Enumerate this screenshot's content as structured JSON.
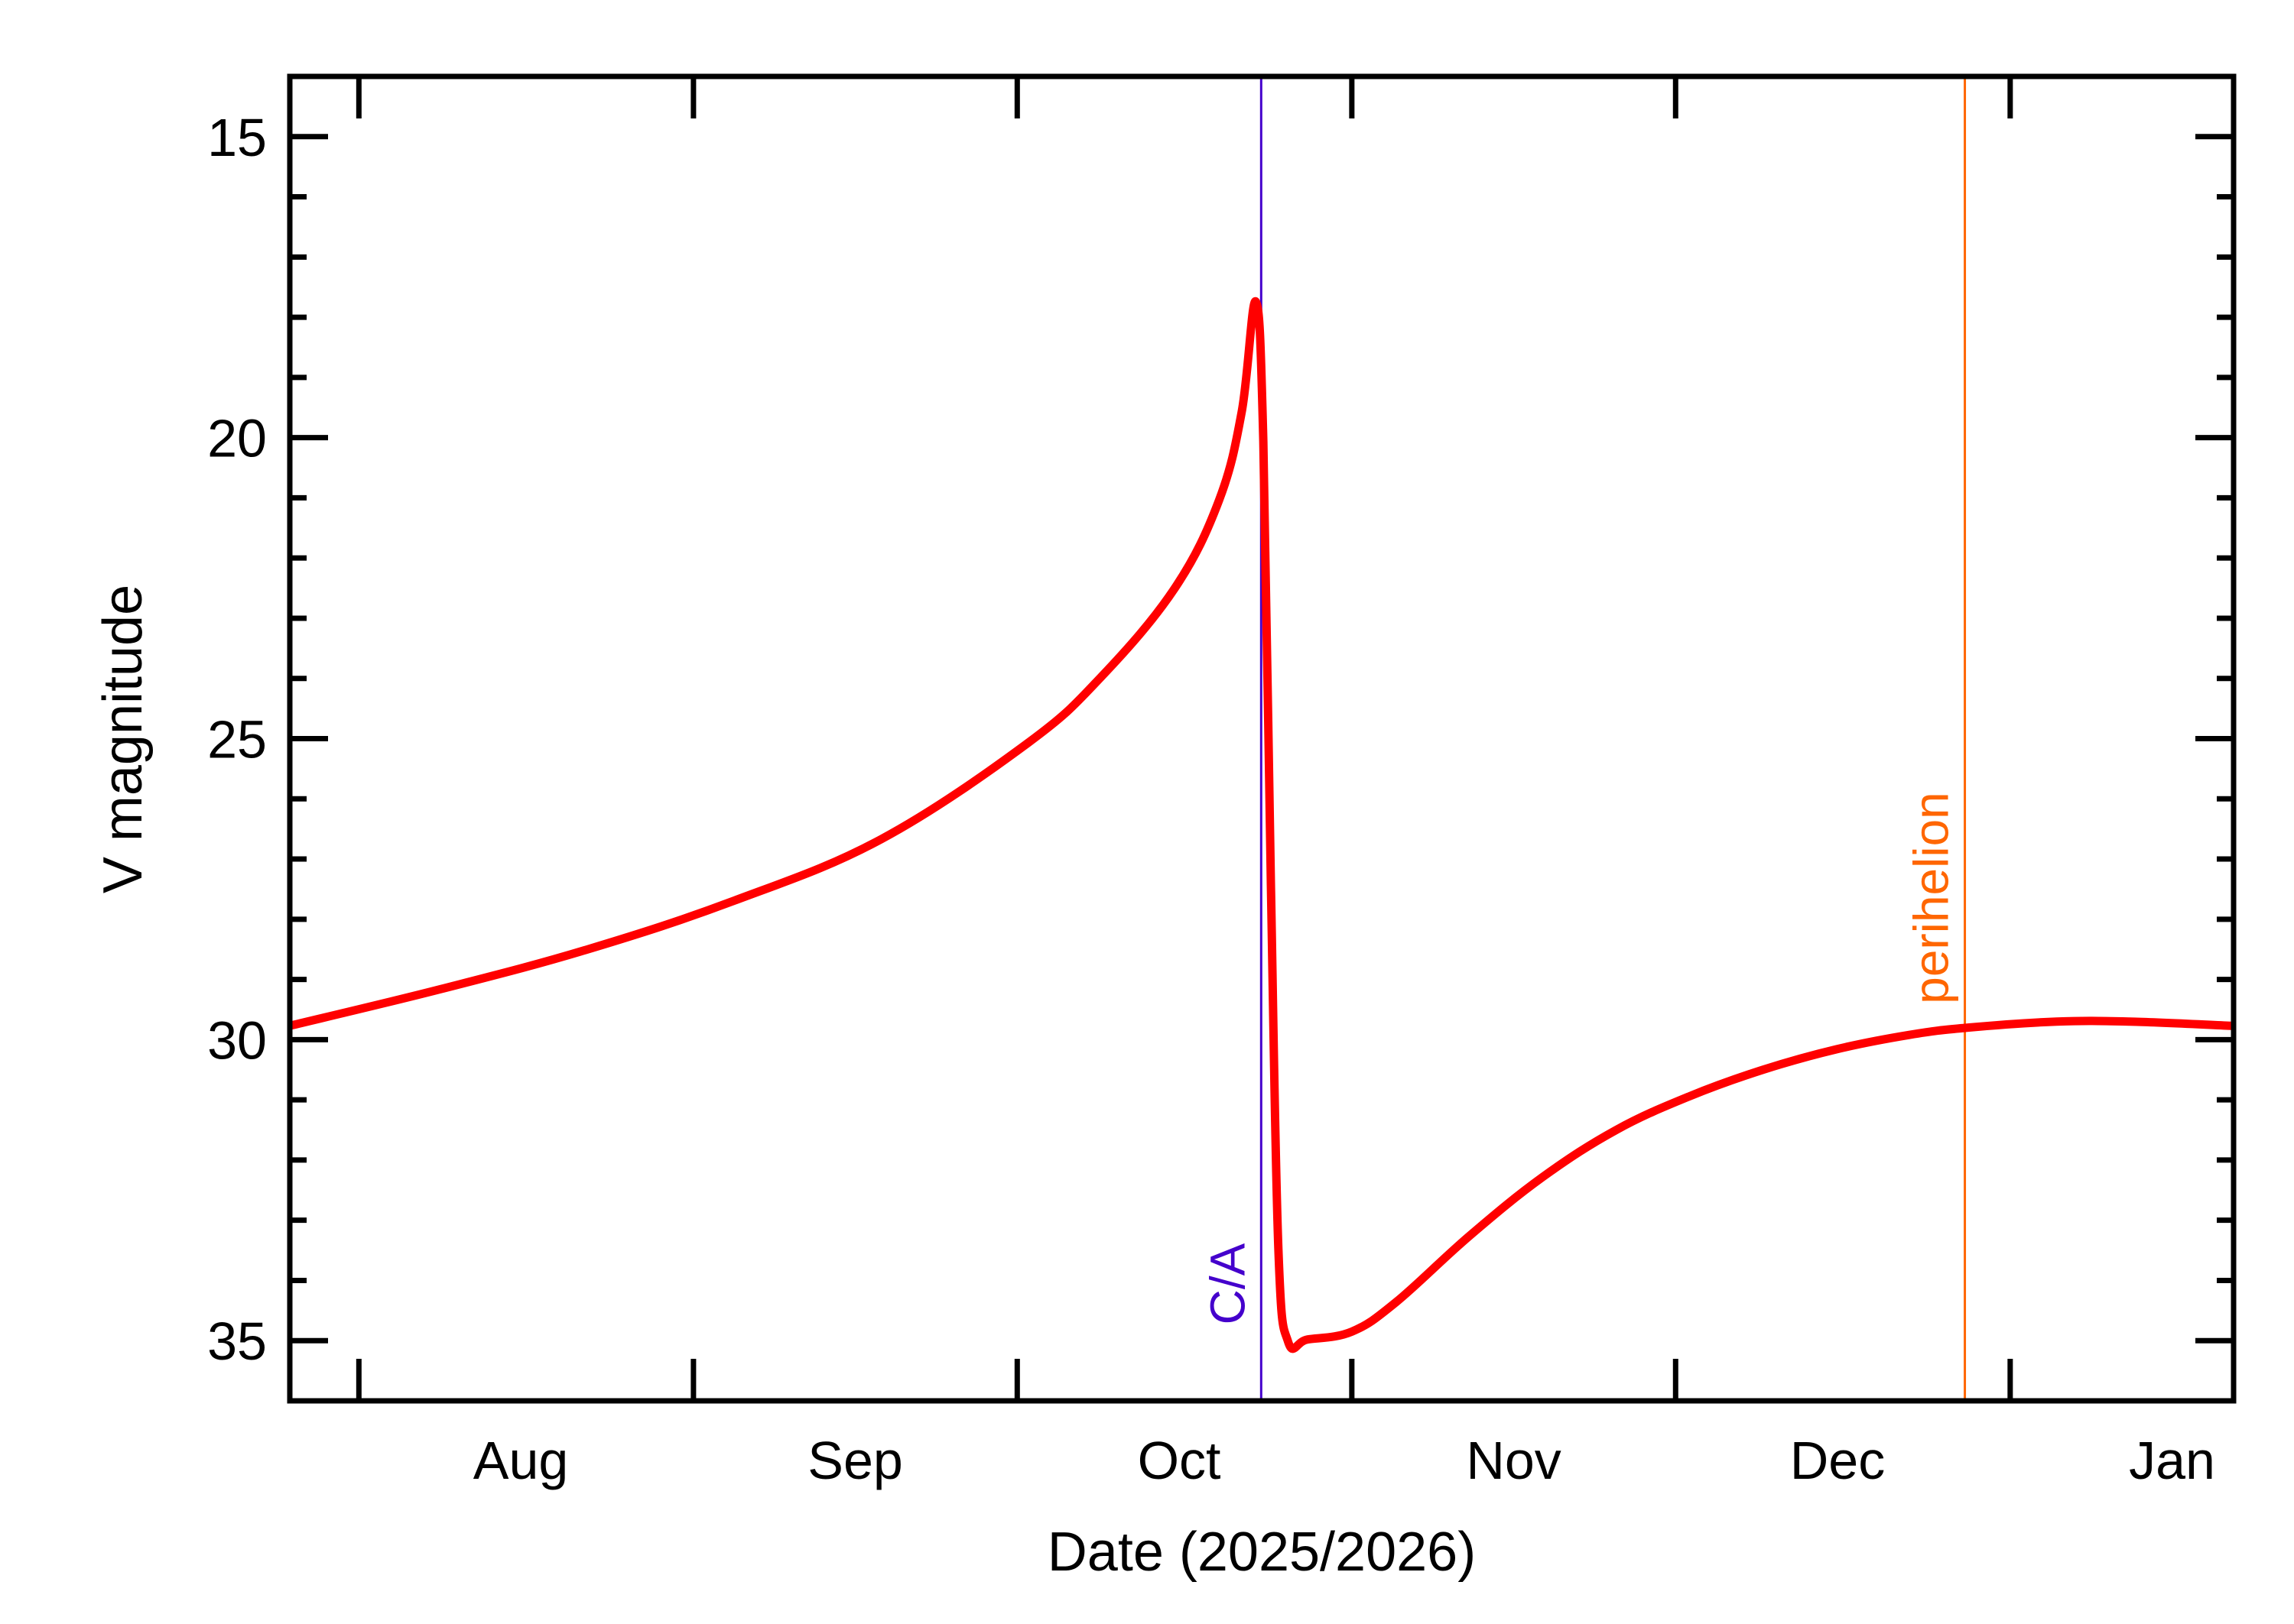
{
  "chart_data": {
    "type": "line",
    "title": "",
    "xlabel": "Date (2025/2026)",
    "ylabel": "V magnitude",
    "x_units": "days since 2025-08-01",
    "xlim": [
      -6.4,
      173.7
    ],
    "ylim": [
      36,
      14
    ],
    "y_inverted": true,
    "yticks": [
      15,
      20,
      25,
      30,
      35
    ],
    "yticks_minor_step": 1,
    "xticks": [
      {
        "day": 0,
        "label": "Aug"
      },
      {
        "day": 31,
        "label": "Sep"
      },
      {
        "day": 61,
        "label": "Oct"
      },
      {
        "day": 92,
        "label": "Nov"
      },
      {
        "day": 122,
        "label": "Dec"
      },
      {
        "day": 153,
        "label": "Jan"
      }
    ],
    "grid": false,
    "series": [
      {
        "name": "V magnitude",
        "color": "#ff0000",
        "x": [
          -6.4,
          7.6,
          21.2,
          34.8,
          48.4,
          62.0,
          68.8,
          75.6,
          79.7,
          81.8,
          83.1,
          83.8,
          84.5,
          85.2,
          86.1,
          87.9,
          92.0,
          96.1,
          102.9,
          109.7,
          116.5,
          123.3,
          130.1,
          136.9,
          143.7,
          149.1,
          157.3,
          164.1,
          173.5
        ],
        "y": [
          29.77,
          29.16,
          28.5,
          27.69,
          26.67,
          25.07,
          23.97,
          22.5,
          21.04,
          19.57,
          17.74,
          20.06,
          27.4,
          33.5,
          35.02,
          34.98,
          34.85,
          34.36,
          33.26,
          32.28,
          31.5,
          30.94,
          30.5,
          30.16,
          29.92,
          29.8,
          29.7,
          29.7,
          29.77
        ]
      }
    ],
    "annotations": [
      {
        "label": "C/A",
        "day": 83.6,
        "color": "#4400cc"
      },
      {
        "label": "perihelion",
        "day": 148.8,
        "color": "#ff6600"
      }
    ]
  }
}
